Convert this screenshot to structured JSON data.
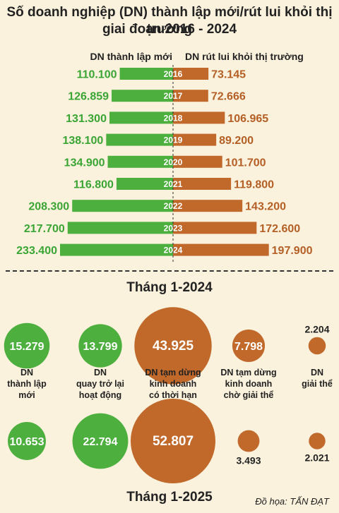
{
  "title_line1": "Số doanh nghiệp (DN) thành lập mới/rút lui khỏi thị trường",
  "title_line2": "giai đoạn 2016 - 2024",
  "credit": "Đồ họa: TẤN ĐẠT",
  "colors": {
    "green": "#4caf3e",
    "brown": "#c0692b",
    "background": "#fbf2dd",
    "green_text": "#3aa534",
    "brown_text": "#b35f25"
  },
  "chart_data": [
    {
      "type": "bar",
      "orientation": "horizontal-diverging",
      "categories": [
        "2016",
        "2017",
        "2018",
        "2019",
        "2020",
        "2021",
        "2022",
        "2023",
        "2024"
      ],
      "series": [
        {
          "name": "DN thành lập mới",
          "values": [
            110100,
            126859,
            131300,
            138100,
            134900,
            116800,
            208300,
            217700,
            233400
          ],
          "labels": [
            "110.100",
            "126.859",
            "131.300",
            "138.100",
            "134.900",
            "116.800",
            "208.300",
            "217.700",
            "233.400"
          ]
        },
        {
          "name": "DN rút lui khỏi thị trường",
          "values": [
            73145,
            72666,
            106965,
            89200,
            101700,
            119800,
            143200,
            172600,
            197900
          ],
          "labels": [
            "73.145",
            "72.666",
            "106.965",
            "89.200",
            "101.700",
            "119.800",
            "143.200",
            "172.600",
            "197.900"
          ]
        }
      ]
    },
    {
      "type": "bubble",
      "section_titles": [
        "Tháng 1-2024",
        "Tháng 1-2025"
      ],
      "categories": [
        "DN\nthành lập\nmới",
        "DN\nquay trở lại\nhoạt động",
        "DN tạm dừng\nkinh doanh\ncó thời hạn",
        "DN tạm dừng\nkinh doanh\nchờ giải thể",
        "DN\ngiải thể"
      ],
      "series": [
        {
          "name": "Tháng 1-2024",
          "values": [
            15279,
            13799,
            43925,
            7798,
            2204
          ],
          "labels": [
            "15.279",
            "13.799",
            "43.925",
            "7.798",
            "2.204"
          ]
        },
        {
          "name": "Tháng 1-2025",
          "values": [
            10653,
            22794,
            52807,
            3493,
            2021
          ],
          "labels": [
            "10.653",
            "22.794",
            "52.807",
            "3.493",
            "2.021"
          ]
        }
      ]
    }
  ]
}
